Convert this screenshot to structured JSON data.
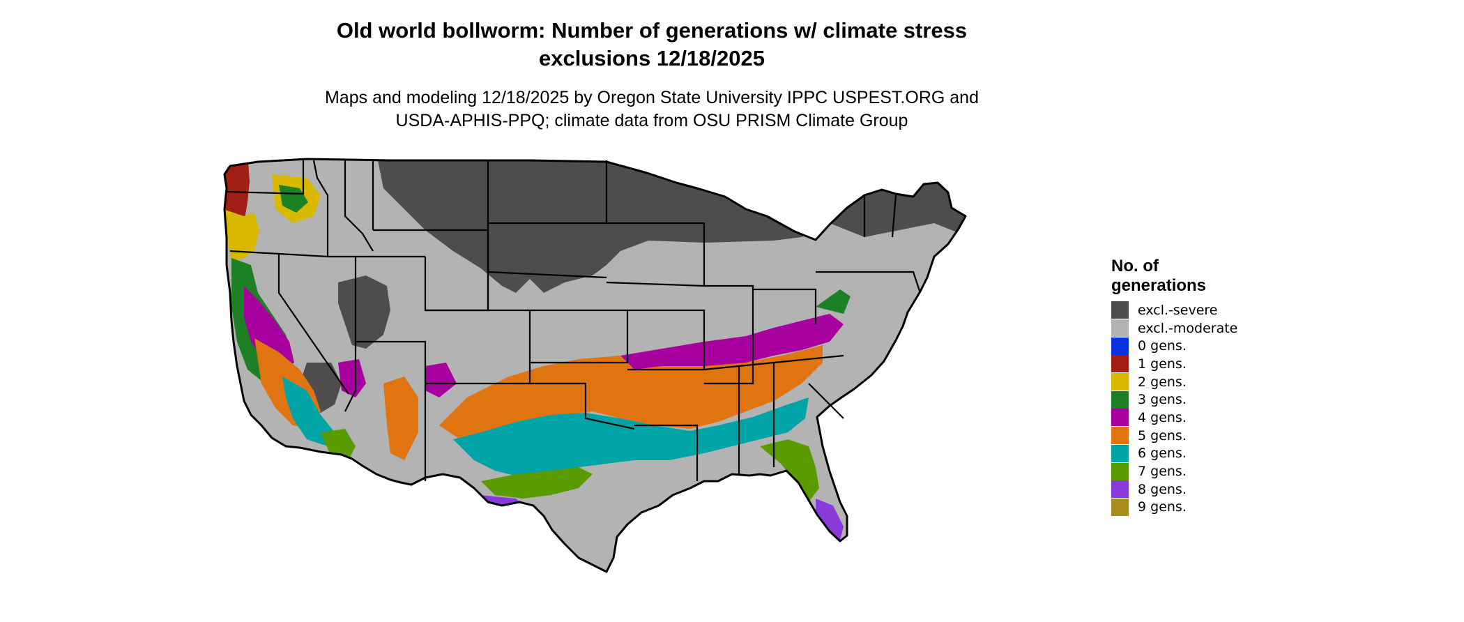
{
  "title_lines": [
    "Old world bollworm: Number of generations w/ climate stress",
    "exclusions 12/18/2025"
  ],
  "subtitle_lines": [
    "Maps and modeling 12/18/2025 by Oregon State University IPPC USPEST.ORG and",
    "USDA-APHIS-PPQ; climate data from OSU PRISM Climate Group"
  ],
  "legend": {
    "title_lines": [
      "No. of",
      "generations"
    ],
    "items": [
      {
        "label": "excl.-severe",
        "color": "#4d4d4d"
      },
      {
        "label": "excl.-moderate",
        "color": "#b3b3b3"
      },
      {
        "label": "0 gens.",
        "color": "#0a30e0"
      },
      {
        "label": "1 gens.",
        "color": "#a01e14"
      },
      {
        "label": "2 gens.",
        "color": "#d8b800"
      },
      {
        "label": "3 gens.",
        "color": "#1e8024"
      },
      {
        "label": "4 gens.",
        "color": "#a8009e"
      },
      {
        "label": "5 gens.",
        "color": "#e07410"
      },
      {
        "label": "6 gens.",
        "color": "#00a4a6"
      },
      {
        "label": "7 gens.",
        "color": "#5a9c00"
      },
      {
        "label": "8 gens.",
        "color": "#8a3ad8"
      },
      {
        "label": "9 gens.",
        "color": "#a88c20"
      }
    ]
  }
}
